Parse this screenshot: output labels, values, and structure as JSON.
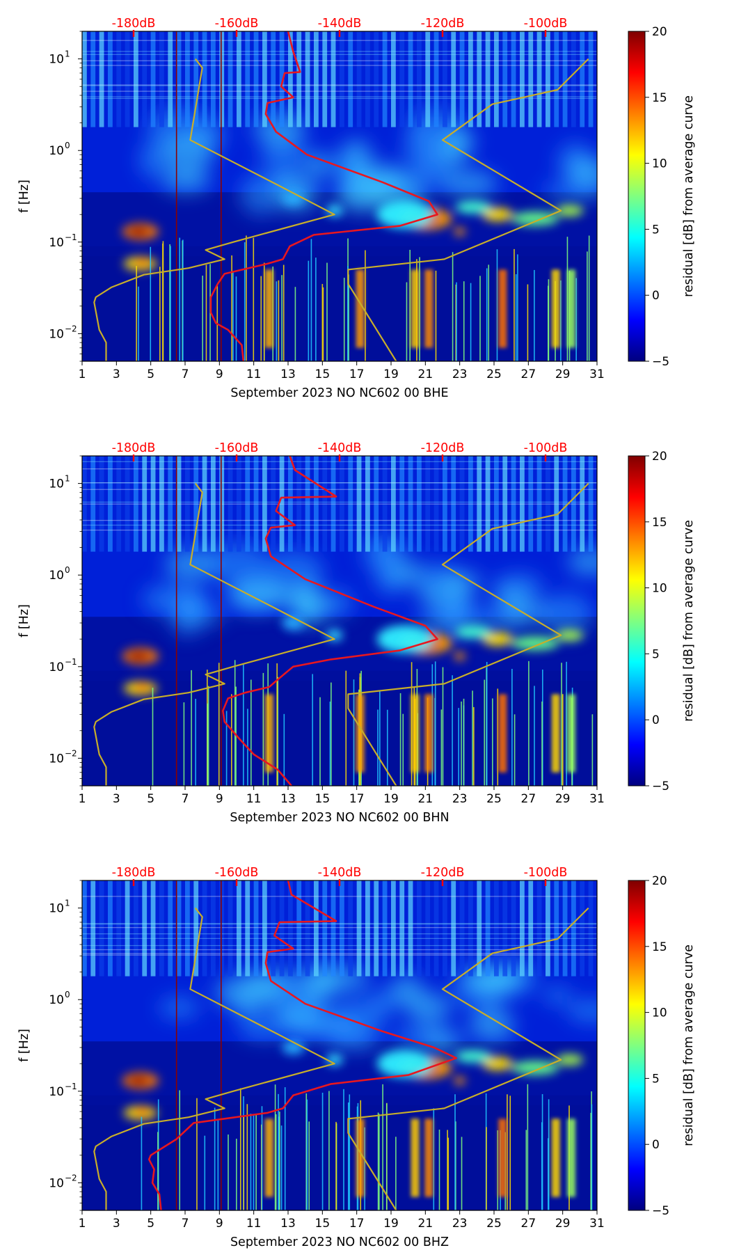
{
  "colors": {
    "noise_curves": "#c8ae2a",
    "median_curve": "#e8171f",
    "top_labels": "#ff0000",
    "frame": "#000000",
    "colormap": [
      "#00007f",
      "#0000ff",
      "#0080ff",
      "#00ffff",
      "#80ff80",
      "#ffff00",
      "#ff8000",
      "#ff0000",
      "#7f0000"
    ]
  },
  "chart_data": [
    {
      "type": "heatmap",
      "title": "",
      "xlabel": "September 2023 NO NC602 00 BHE",
      "ylabel": "f [Hz]",
      "xlim": [
        1,
        31
      ],
      "ylim": [
        0.005,
        20
      ],
      "yscale": "log",
      "x_ticks": [
        "1",
        "3",
        "5",
        "7",
        "9",
        "11",
        "13",
        "15",
        "17",
        "19",
        "21",
        "23",
        "25",
        "27",
        "29",
        "31"
      ],
      "y_ticks": [
        {
          "base": "10",
          "exp": "1",
          "value": 10
        },
        {
          "base": "10",
          "exp": "0",
          "value": 1
        },
        {
          "base": "10",
          "exp": "−1",
          "value": 0.1
        },
        {
          "base": "10",
          "exp": "−2",
          "value": 0.01
        }
      ],
      "top_axis": {
        "labels": [
          "-180dB",
          "-160dB",
          "-140dB",
          "-120dB",
          "-100dB"
        ],
        "day_positions": [
          4,
          10,
          16,
          22,
          28
        ]
      },
      "colorbar": {
        "label": "residual [dB] from average curve",
        "range": [
          -5,
          20
        ],
        "ticks": [
          "20",
          "15",
          "10",
          "5",
          "0",
          "−5"
        ],
        "tick_values": [
          20,
          15,
          10,
          5,
          0,
          -5
        ]
      },
      "series": [
        {
          "name": "noise model low",
          "x": [
            2.4,
            2.4,
            2.0,
            1.7,
            1.8,
            2.7,
            4.6,
            7.2,
            9.3,
            8.2,
            9.8,
            15.7,
            12.4,
            7.3,
            8.0,
            7.6
          ],
          "y": [
            0.005,
            0.008,
            0.011,
            0.022,
            0.025,
            0.032,
            0.044,
            0.052,
            0.065,
            0.082,
            0.1,
            0.2,
            0.42,
            1.3,
            8,
            10
          ]
        },
        {
          "name": "noise model high",
          "x": [
            19.3,
            16.5,
            16.5,
            22.1,
            28.9,
            22.0,
            24.9,
            28.7,
            30.5
          ],
          "y": [
            0.005,
            0.035,
            0.05,
            0.065,
            0.22,
            1.3,
            3.2,
            4.6,
            10
          ]
        },
        {
          "name": "median PSD",
          "x": [
            10.4,
            10.3,
            9.5,
            8.8,
            8.5,
            8.5,
            8.9,
            9.3,
            11.8,
            12.7,
            13.1,
            14.5,
            19.5,
            21.7,
            21.2,
            18.5,
            14.1,
            12.3,
            11.7,
            11.8,
            13.3,
            12.6,
            12.8,
            13.7,
            13.3,
            13.0
          ],
          "y": [
            0.005,
            0.0075,
            0.011,
            0.013,
            0.017,
            0.025,
            0.035,
            0.045,
            0.058,
            0.065,
            0.09,
            0.12,
            0.15,
            0.2,
            0.28,
            0.45,
            0.9,
            1.6,
            2.5,
            3.3,
            3.8,
            5,
            7,
            7.2,
            12,
            20
          ]
        }
      ]
    },
    {
      "type": "heatmap",
      "title": "",
      "xlabel": "September 2023 NO NC602 00 BHN",
      "ylabel": "f [Hz]",
      "xlim": [
        1,
        31
      ],
      "ylim": [
        0.005,
        20
      ],
      "yscale": "log",
      "x_ticks": [
        "1",
        "3",
        "5",
        "7",
        "9",
        "11",
        "13",
        "15",
        "17",
        "19",
        "21",
        "23",
        "25",
        "27",
        "29",
        "31"
      ],
      "y_ticks": [
        {
          "base": "10",
          "exp": "1",
          "value": 10
        },
        {
          "base": "10",
          "exp": "0",
          "value": 1
        },
        {
          "base": "10",
          "exp": "−1",
          "value": 0.1
        },
        {
          "base": "10",
          "exp": "−2",
          "value": 0.01
        }
      ],
      "top_axis": {
        "labels": [
          "-180dB",
          "-160dB",
          "-140dB",
          "-120dB",
          "-100dB"
        ],
        "day_positions": [
          4,
          10,
          16,
          22,
          28
        ]
      },
      "colorbar": {
        "label": "residual [dB] from average curve",
        "range": [
          -5,
          20
        ],
        "ticks": [
          "20",
          "15",
          "10",
          "5",
          "0",
          "−5"
        ],
        "tick_values": [
          20,
          15,
          10,
          5,
          0,
          -5
        ]
      },
      "series": [
        {
          "name": "noise model low",
          "x": [
            2.4,
            2.4,
            2.0,
            1.7,
            1.8,
            2.7,
            4.6,
            7.2,
            9.3,
            8.2,
            9.8,
            15.7,
            12.4,
            7.3,
            8.0,
            7.6
          ],
          "y": [
            0.005,
            0.008,
            0.011,
            0.022,
            0.025,
            0.032,
            0.044,
            0.052,
            0.065,
            0.082,
            0.1,
            0.2,
            0.42,
            1.3,
            8,
            10
          ]
        },
        {
          "name": "noise model high",
          "x": [
            19.3,
            16.5,
            16.5,
            22.1,
            28.9,
            22.0,
            24.9,
            28.7,
            30.5
          ],
          "y": [
            0.005,
            0.035,
            0.05,
            0.065,
            0.22,
            1.3,
            3.2,
            4.6,
            10
          ]
        },
        {
          "name": "median PSD",
          "x": [
            13.2,
            12.4,
            11.0,
            10.2,
            9.3,
            9.2,
            9.5,
            10.5,
            11.9,
            12.5,
            13.3,
            15.5,
            19.5,
            21.7,
            21.0,
            18.0,
            14.0,
            12.0,
            11.7,
            12.0,
            13.4,
            12.3,
            12.6,
            15.8,
            13.4,
            13.1
          ],
          "y": [
            0.005,
            0.0075,
            0.011,
            0.016,
            0.025,
            0.033,
            0.045,
            0.052,
            0.06,
            0.075,
            0.1,
            0.12,
            0.15,
            0.2,
            0.28,
            0.45,
            0.9,
            1.6,
            2.5,
            3.3,
            3.5,
            5,
            7,
            7.2,
            14,
            20
          ]
        }
      ]
    },
    {
      "type": "heatmap",
      "title": "",
      "xlabel": "September 2023 NO NC602 00 BHZ",
      "ylabel": "f [Hz]",
      "xlim": [
        1,
        31
      ],
      "ylim": [
        0.005,
        20
      ],
      "yscale": "log",
      "x_ticks": [
        "1",
        "3",
        "5",
        "7",
        "9",
        "11",
        "13",
        "15",
        "17",
        "19",
        "21",
        "23",
        "25",
        "27",
        "29",
        "31"
      ],
      "y_ticks": [
        {
          "base": "10",
          "exp": "1",
          "value": 10
        },
        {
          "base": "10",
          "exp": "0",
          "value": 1
        },
        {
          "base": "10",
          "exp": "−1",
          "value": 0.1
        },
        {
          "base": "10",
          "exp": "−2",
          "value": 0.01
        }
      ],
      "top_axis": {
        "labels": [
          "-180dB",
          "-160dB",
          "-140dB",
          "-120dB",
          "-100dB"
        ],
        "day_positions": [
          4,
          10,
          16,
          22,
          28
        ]
      },
      "colorbar": {
        "label": "residual [dB] from average curve",
        "range": [
          -5,
          20
        ],
        "ticks": [
          "20",
          "15",
          "10",
          "5",
          "0",
          "−5"
        ],
        "tick_values": [
          20,
          15,
          10,
          5,
          0,
          -5
        ]
      },
      "series": [
        {
          "name": "noise model low",
          "x": [
            2.4,
            2.4,
            2.0,
            1.7,
            1.8,
            2.7,
            4.6,
            7.2,
            9.3,
            8.2,
            9.8,
            15.7,
            12.4,
            7.3,
            8.0,
            7.6
          ],
          "y": [
            0.005,
            0.008,
            0.011,
            0.022,
            0.025,
            0.032,
            0.044,
            0.052,
            0.065,
            0.082,
            0.1,
            0.2,
            0.42,
            1.3,
            8,
            10
          ]
        },
        {
          "name": "noise model high",
          "x": [
            19.3,
            16.5,
            16.5,
            22.1,
            28.9,
            22.0,
            24.9,
            28.7,
            30.5
          ],
          "y": [
            0.005,
            0.035,
            0.05,
            0.065,
            0.22,
            1.3,
            3.2,
            4.6,
            10
          ]
        },
        {
          "name": "median PSD",
          "x": [
            5.6,
            5.5,
            5.1,
            5.2,
            4.9,
            5.0,
            6.5,
            7.5,
            11.8,
            12.7,
            13.3,
            15.5,
            20.0,
            22.8,
            21.5,
            18.5,
            14.0,
            12.0,
            11.7,
            11.8,
            13.3,
            12.2,
            12.5,
            15.8,
            13.2,
            13.0
          ],
          "y": [
            0.005,
            0.0075,
            0.01,
            0.014,
            0.018,
            0.02,
            0.03,
            0.045,
            0.058,
            0.065,
            0.09,
            0.12,
            0.15,
            0.23,
            0.3,
            0.45,
            0.9,
            1.6,
            2.5,
            3.3,
            3.6,
            5,
            7,
            7.2,
            14,
            20
          ]
        }
      ]
    }
  ]
}
